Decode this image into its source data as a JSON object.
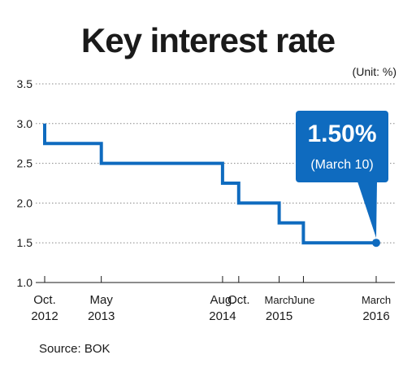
{
  "chart_data": {
    "type": "line",
    "step": true,
    "title": "Key interest rate",
    "unit_label": "(Unit: %)",
    "source": "Source: BOK",
    "ylim": [
      1.0,
      3.5
    ],
    "yticks": [
      "1.0",
      "1.5",
      "2.0",
      "2.5",
      "3.0",
      "3.5"
    ],
    "grid": true,
    "series": [
      {
        "values": [
          {
            "x": "2012-10",
            "y": 3.0
          },
          {
            "x": "2012-10",
            "y": 2.75
          },
          {
            "x": "2013-05",
            "y": 2.75
          },
          {
            "x": "2013-05",
            "y": 2.5
          },
          {
            "x": "2014-08",
            "y": 2.5
          },
          {
            "x": "2014-08",
            "y": 2.25
          },
          {
            "x": "2014-10",
            "y": 2.25
          },
          {
            "x": "2014-10",
            "y": 2.0
          },
          {
            "x": "2015-03",
            "y": 2.0
          },
          {
            "x": "2015-03",
            "y": 1.75
          },
          {
            "x": "2015-06",
            "y": 1.75
          },
          {
            "x": "2015-06",
            "y": 1.5
          },
          {
            "x": "2016-03",
            "y": 1.5
          }
        ]
      }
    ],
    "x_ticks": [
      {
        "date": "2012-10",
        "line1": "Oct.",
        "line2": "2012"
      },
      {
        "date": "2013-05",
        "line1": "May",
        "line2": "2013"
      },
      {
        "date": "2014-08",
        "line1": "Aug.",
        "line2": "2014"
      },
      {
        "date": "2014-10",
        "line1": "Oct.",
        "line2": ""
      },
      {
        "date": "2015-03",
        "line1": "March",
        "line2": "2015"
      },
      {
        "date": "2015-06",
        "line1": "June",
        "line2": ""
      },
      {
        "date": "2016-03",
        "line1": "March",
        "line2": "2016"
      }
    ],
    "callout": {
      "value": "1.50%",
      "date": "(March 10)"
    },
    "colors": {
      "line": "#0f6bbf",
      "grid": "#888888",
      "callout": "#0f6bbf"
    }
  }
}
